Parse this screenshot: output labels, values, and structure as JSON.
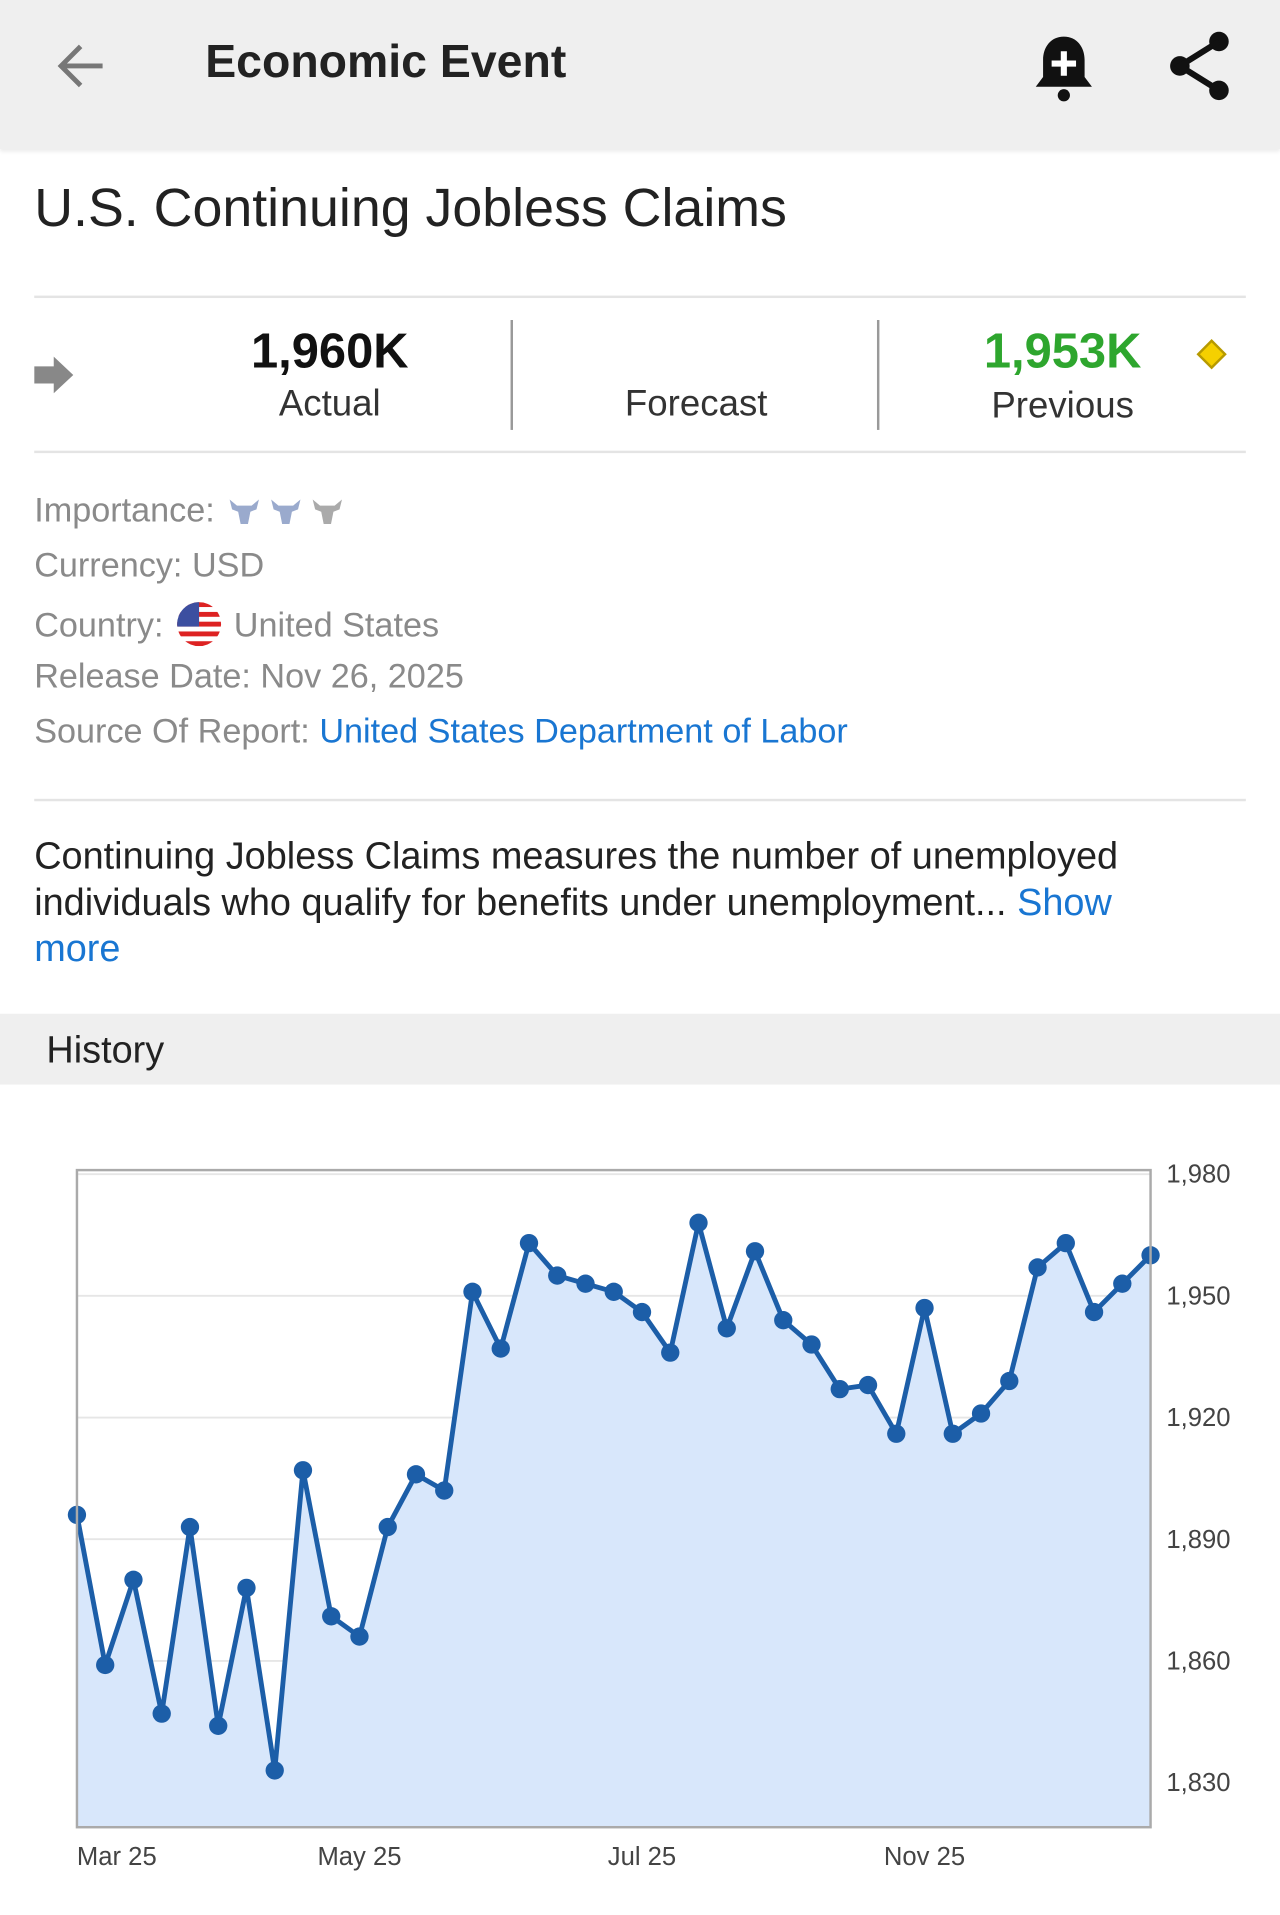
{
  "header": {
    "title": "Economic Event"
  },
  "event": {
    "title": "U.S. Continuing Jobless Claims"
  },
  "stats": {
    "actual": {
      "value": "1,960K",
      "label": "Actual"
    },
    "forecast": {
      "label": "Forecast"
    },
    "previous": {
      "value": "1,953K",
      "label": "Previous"
    }
  },
  "details": {
    "importance": {
      "label": "Importance:"
    },
    "currency": {
      "label": "Currency:",
      "value": "USD"
    },
    "country": {
      "label": "Country:",
      "value": "United States"
    },
    "release_date": {
      "label": "Release Date:",
      "value": "Nov 26, 2025"
    },
    "source": {
      "label": "Source Of Report:",
      "value": "United States Department of Labor"
    }
  },
  "description": {
    "text": "Continuing Jobless Claims measures the number of unemployed individuals who qualify for benefits under unemployment...",
    "link": "Show more"
  },
  "history": {
    "title": "History"
  },
  "chart_data": {
    "type": "line",
    "categories": [
      "Mar 25",
      null,
      null,
      null,
      null,
      null,
      null,
      null,
      null,
      null,
      "May 25",
      null,
      null,
      null,
      null,
      null,
      null,
      null,
      null,
      null,
      "Jul 25",
      null,
      null,
      null,
      null,
      null,
      null,
      null,
      null,
      null,
      "Nov 25",
      null,
      null,
      null,
      null,
      null,
      null,
      null,
      null
    ],
    "series": [
      {
        "color": "#1c5ea8",
        "fill": "#d8e7fb",
        "values": [
          1896,
          1859,
          1880,
          1847,
          1893,
          1844,
          1878,
          1833,
          1907,
          1871,
          1866,
          1893,
          1906,
          1902,
          1951,
          1937,
          1963,
          1955,
          1953,
          1951,
          1946,
          1936,
          1968,
          1942,
          1961,
          1944,
          1938,
          1927,
          1928,
          1916,
          1947,
          1916,
          1921,
          1929,
          1957,
          1963,
          1946,
          1953,
          1960
        ]
      }
    ],
    "ylim": [
      1819,
      1981
    ],
    "yticks": [
      {
        "value": 1830,
        "label": "1,830"
      },
      {
        "value": 1860,
        "label": "1,860"
      },
      {
        "value": 1890,
        "label": "1,890"
      },
      {
        "value": 1920,
        "label": "1,920"
      },
      {
        "value": 1950,
        "label": "1,950"
      },
      {
        "value": 1980,
        "label": "1,980"
      }
    ],
    "grid": true
  }
}
